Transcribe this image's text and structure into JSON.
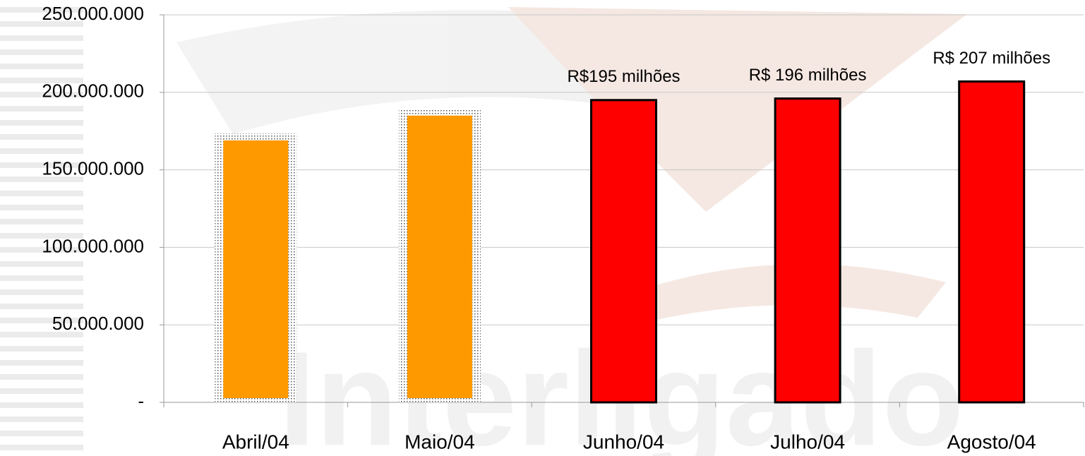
{
  "chart_data": {
    "type": "bar",
    "watermark": "Interligado",
    "categories": [
      "Abril/04",
      "Maio/04",
      "Junho/04",
      "Julho/04",
      "Agosto/04"
    ],
    "values": [
      169000000,
      185000000,
      195000000,
      196000000,
      207000000
    ],
    "value_labels": [
      null,
      null,
      "R$195 milhões",
      "R$ 196 milhões",
      "R$ 207 milhões"
    ],
    "colors": [
      "#ff9900",
      "#ff9900",
      "#ff0000",
      "#ff0000",
      "#ff0000"
    ],
    "edge_styles": [
      "dotted",
      "dotted",
      "solid",
      "solid",
      "solid"
    ],
    "ylim": [
      0,
      250000000
    ],
    "yticks": [
      {
        "value": 0,
        "label": "-"
      },
      {
        "value": 50000000,
        "label": "50.000.000"
      },
      {
        "value": 100000000,
        "label": "100.000.000"
      },
      {
        "value": 150000000,
        "label": "150.000.000"
      },
      {
        "value": 200000000,
        "label": "200.000.000"
      },
      {
        "value": 250000000,
        "label": "250.000.000"
      }
    ],
    "grid": true
  }
}
